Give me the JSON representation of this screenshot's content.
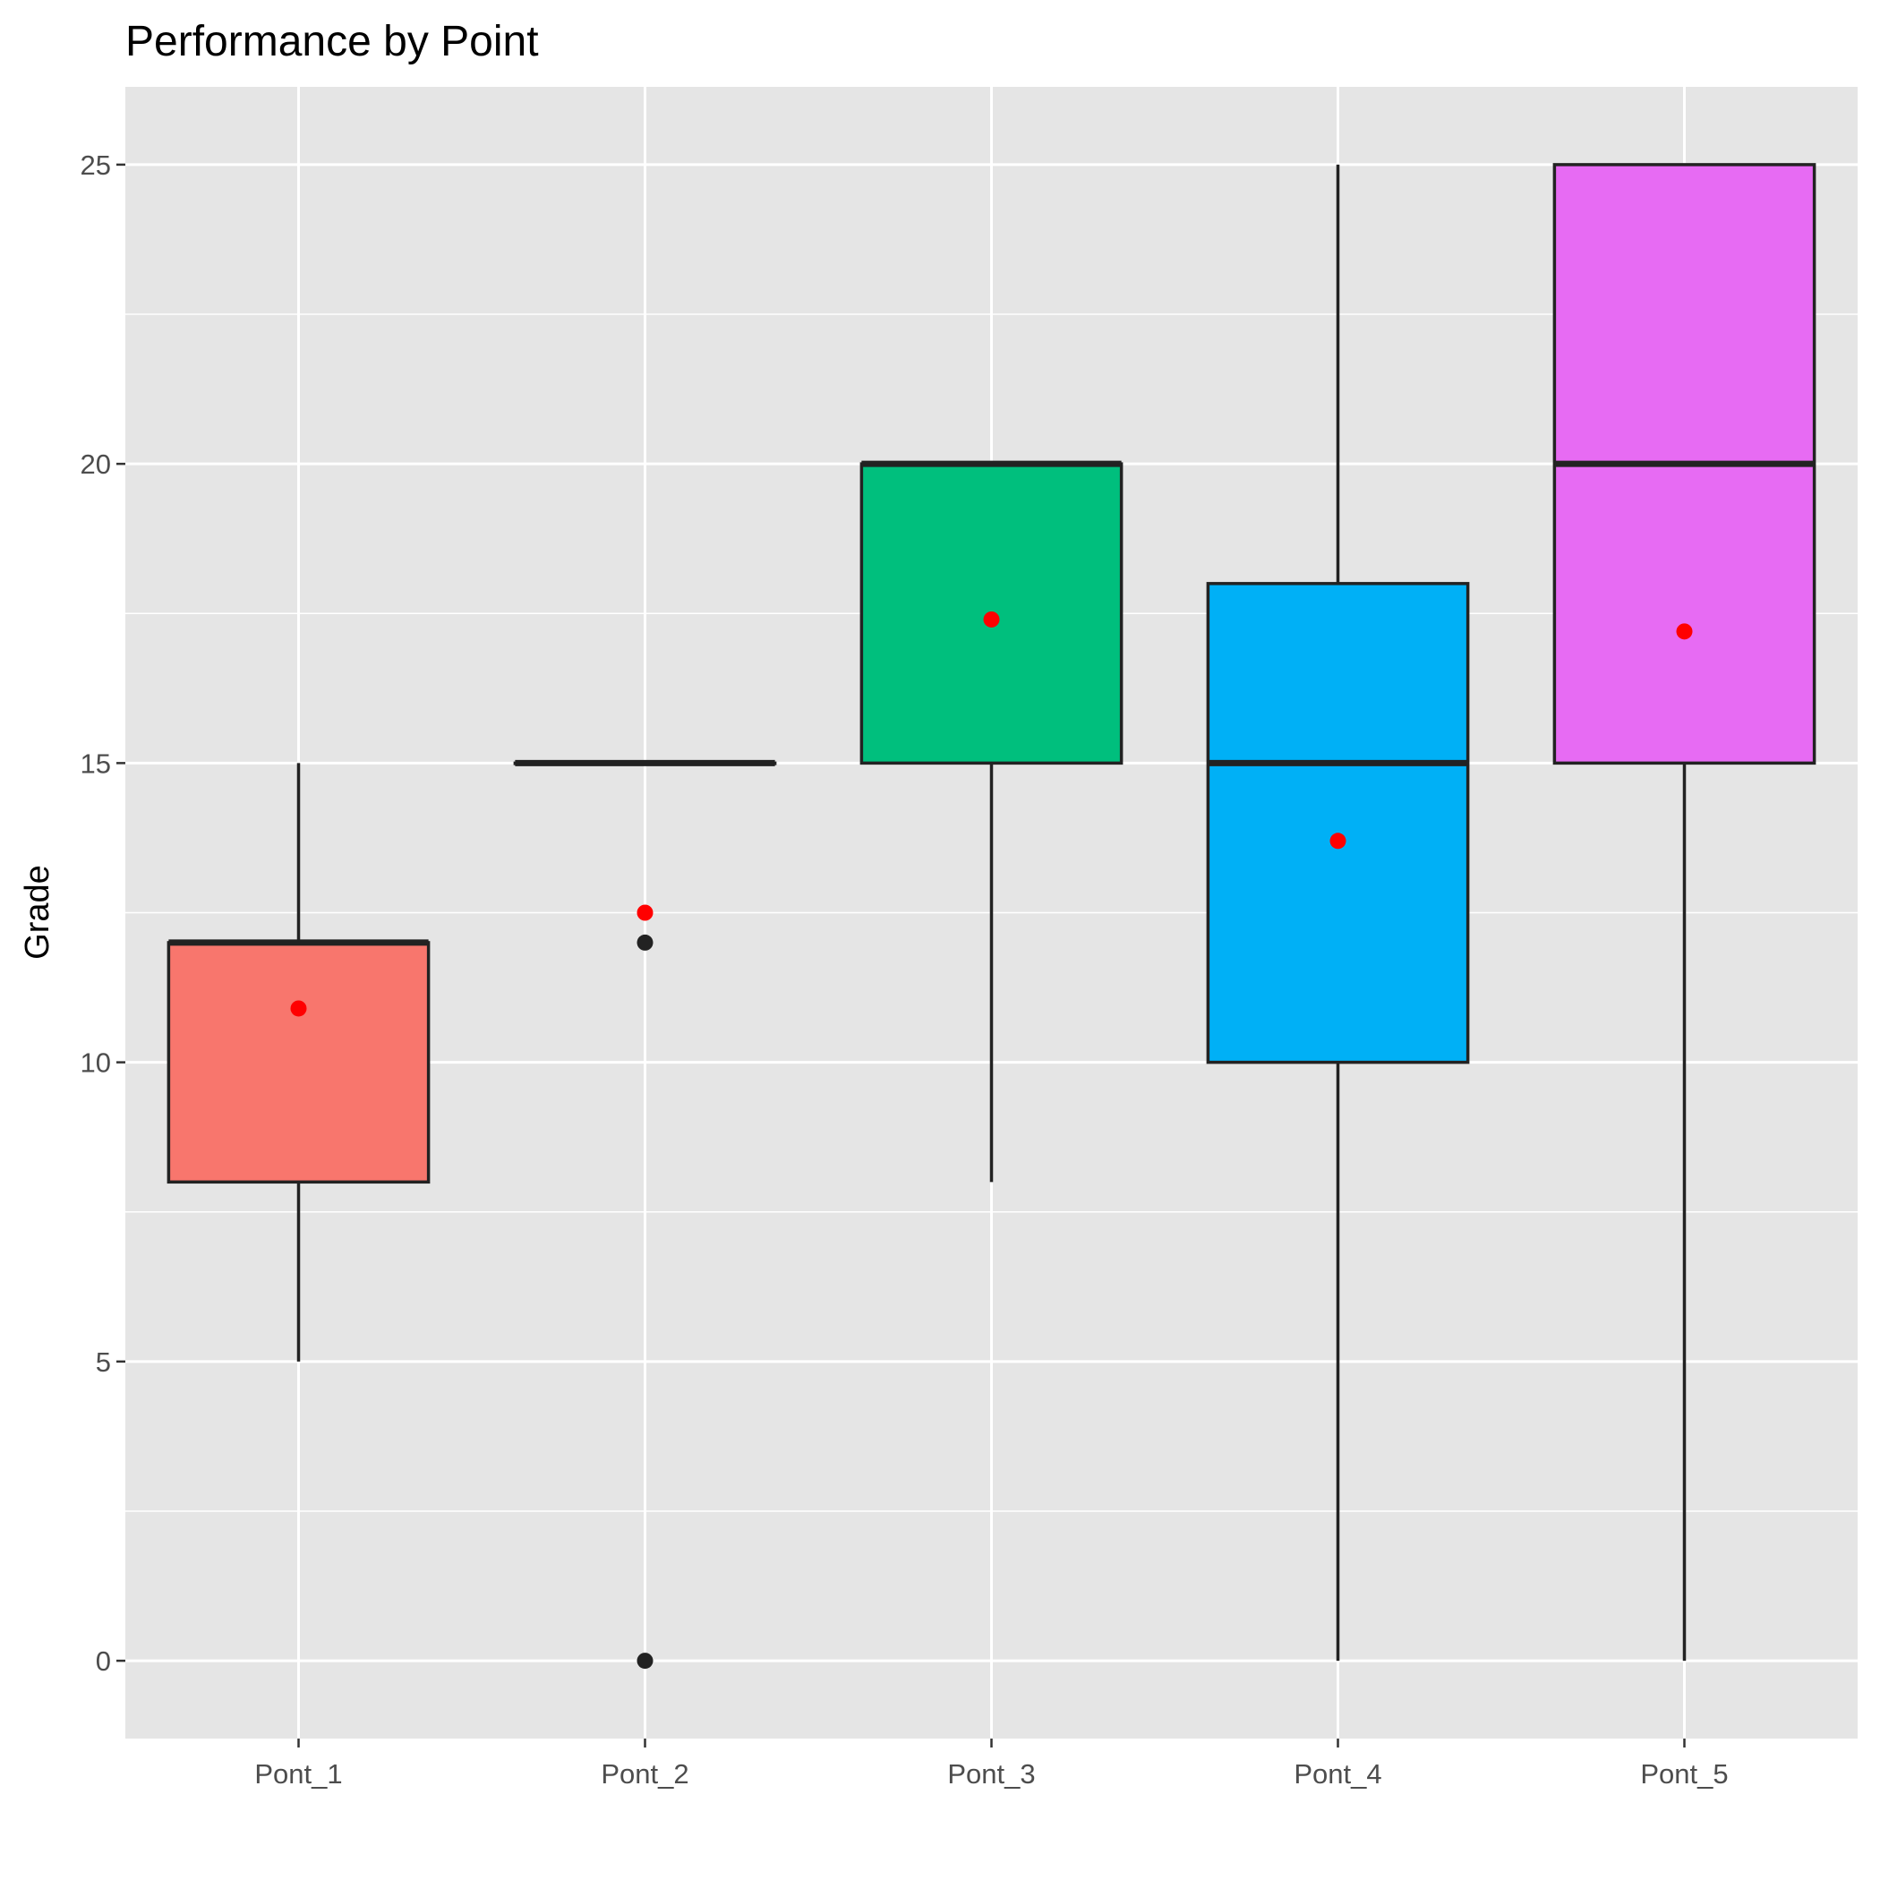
{
  "chart_data": {
    "type": "box",
    "title": "Performance by Point",
    "xlabel": "",
    "ylabel": "Grade",
    "ylim": [
      -1.3,
      26.3
    ],
    "y_ticks": [
      0,
      5,
      10,
      15,
      20,
      25
    ],
    "grid": true,
    "legend": "none",
    "categories": [
      "Pont_1",
      "Pont_2",
      "Pont_3",
      "Pont_4",
      "Pont_5"
    ],
    "boxes": [
      {
        "category": "Pont_1",
        "whisker_low": 5,
        "q1": 8,
        "median": 12,
        "q3": 12,
        "whisker_high": 15,
        "mean": 10.9,
        "outliers": [],
        "fill": "#F8766D"
      },
      {
        "category": "Pont_2",
        "whisker_low": 15,
        "q1": 15,
        "median": 15,
        "q3": 15,
        "whisker_high": 15,
        "mean": 12.5,
        "outliers": [
          12,
          0
        ],
        "fill": "#A3A500"
      },
      {
        "category": "Pont_3",
        "whisker_low": 8,
        "q1": 15,
        "median": 20,
        "q3": 20,
        "whisker_high": 20,
        "mean": 17.4,
        "outliers": [],
        "fill": "#00BF7D"
      },
      {
        "category": "Pont_4",
        "whisker_low": 0,
        "q1": 10,
        "median": 15,
        "q3": 18,
        "whisker_high": 25,
        "mean": 13.7,
        "outliers": [],
        "fill": "#00B0F6"
      },
      {
        "category": "Pont_5",
        "whisker_low": 0,
        "q1": 15,
        "median": 20,
        "q3": 25,
        "whisker_high": 25,
        "mean": 17.2,
        "outliers": [],
        "fill": "#E76BF3"
      }
    ],
    "colors": {
      "panel": "#E5E5E5",
      "grid": "#FFFFFF",
      "box_outline": "#222222",
      "mean_point": "#FF0000",
      "outlier_point": "#222222"
    }
  }
}
